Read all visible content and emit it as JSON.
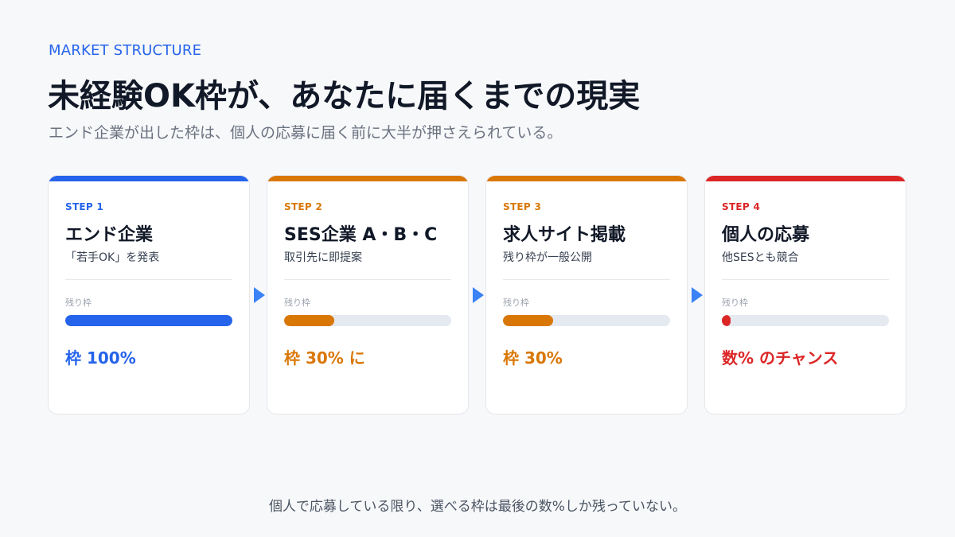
{
  "header": {
    "eyebrow": "MARKET STRUCTURE",
    "title": "未経験OK枠が、あなたに届くまでの現実",
    "subtitle": "エンド企業が出した枠は、個人の応募に届く前に大半が押さえられている。"
  },
  "steps": [
    {
      "step": "STEP 1",
      "name": "エンド企業",
      "desc": "「若手OK」を発表",
      "remaining_label": "残り枠",
      "remaining_fraction": 1.0,
      "result": "枠 100%",
      "color": "#2563eb"
    },
    {
      "step": "STEP 2",
      "name": "SES企業 A・B・C",
      "desc": "取引先に即提案",
      "remaining_label": "残り枠",
      "remaining_fraction": 0.3,
      "result": "枠 30% に",
      "color": "#d97706"
    },
    {
      "step": "STEP 3",
      "name": "求人サイト掲載",
      "desc": "残り枠が一般公開",
      "remaining_label": "残り枠",
      "remaining_fraction": 0.3,
      "result": "枠 30%",
      "color": "#d97706"
    },
    {
      "step": "STEP 4",
      "name": "個人の応募",
      "desc": "他SESとも競合",
      "remaining_label": "残り枠",
      "remaining_fraction": 0.05,
      "result": "数% のチャンス",
      "color": "#dc2626"
    }
  ],
  "arrow_color": "#3b82f6",
  "footer": {
    "text": "個人で応募している限り、選べる枠は最後の数%しか残っていない。"
  }
}
